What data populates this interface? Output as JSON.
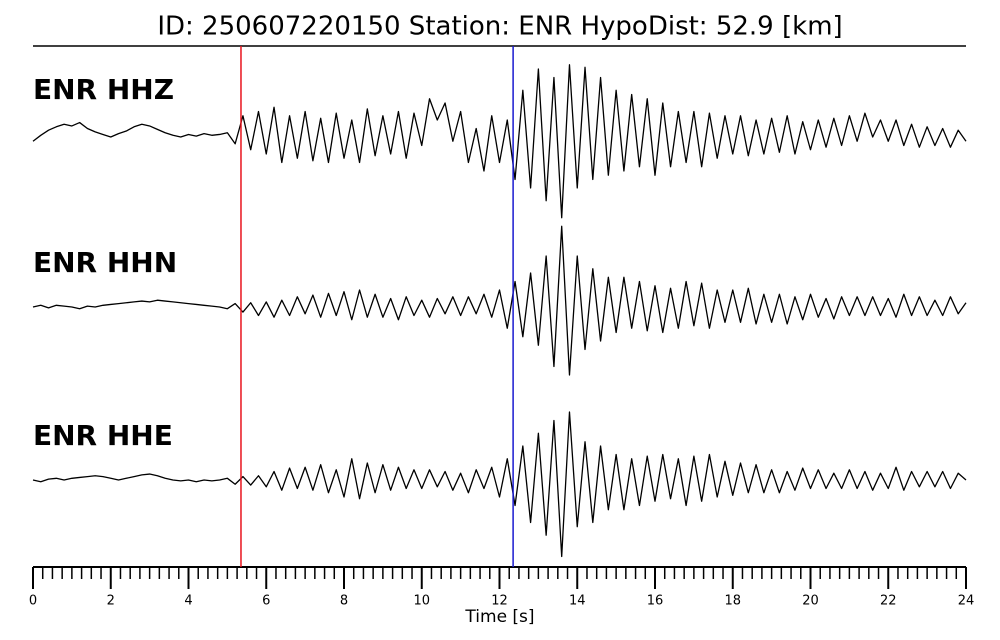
{
  "chart_data": {
    "type": "seismogram",
    "title": "ID: 250607220150   Station: ENR   HypoDist:    52.9 [km]",
    "xlabel": "Time [s]",
    "xlim": [
      0,
      24
    ],
    "xticks": [
      0,
      2,
      4,
      6,
      8,
      10,
      12,
      14,
      16,
      18,
      20,
      22,
      24
    ],
    "xminorticks": [
      0,
      0.25,
      0.5,
      0.75,
      1,
      1.25,
      1.5,
      1.75,
      2,
      2.25,
      2.5,
      2.75,
      3,
      3.25,
      3.5,
      3.75,
      4,
      4.25,
      4.5,
      4.75,
      5,
      5.25,
      5.5,
      5.75,
      6,
      6.25,
      6.5,
      6.75,
      7,
      7.25,
      7.5,
      7.75,
      8,
      8.25,
      8.5,
      8.75,
      9,
      9.25,
      9.5,
      9.75,
      10,
      10.25,
      10.5,
      10.75,
      11,
      11.25,
      11.5,
      11.75,
      12,
      12.25,
      12.5,
      12.75,
      13,
      13.25,
      13.5,
      13.75,
      14,
      14.25,
      14.5,
      14.75,
      15,
      15.25,
      15.5,
      15.75,
      16,
      16.25,
      16.5,
      16.75,
      17,
      17.25,
      17.5,
      17.75,
      18,
      18.25,
      18.5,
      18.75,
      19,
      19.25,
      19.5,
      19.75,
      20,
      20.25,
      20.5,
      20.75,
      21,
      21.25,
      21.5,
      21.75,
      22,
      22.25,
      22.5,
      22.75,
      23,
      23.25,
      23.5,
      23.75,
      24
    ],
    "ylim": [
      -1,
      1
    ],
    "markers": [
      {
        "x": 5.35,
        "color": "#e8141e"
      },
      {
        "x": 12.35,
        "color": "#1a1ad0"
      }
    ],
    "label_color": "#4b9a06",
    "x": [
      0,
      0.2,
      0.4,
      0.6,
      0.8,
      1,
      1.2,
      1.4,
      1.6,
      1.8,
      2,
      2.2,
      2.4,
      2.6,
      2.8,
      3,
      3.2,
      3.4,
      3.6,
      3.8,
      4,
      4.2,
      4.4,
      4.6,
      4.8,
      5,
      5.2,
      5.4,
      5.6,
      5.8,
      6,
      6.2,
      6.4,
      6.6,
      6.8,
      7,
      7.2,
      7.4,
      7.6,
      7.8,
      8,
      8.2,
      8.4,
      8.6,
      8.8,
      9,
      9.2,
      9.4,
      9.6,
      9.8,
      10,
      10.2,
      10.4,
      10.6,
      10.8,
      11,
      11.2,
      11.4,
      11.6,
      11.8,
      12,
      12.2,
      12.4,
      12.6,
      12.8,
      13,
      13.2,
      13.4,
      13.6,
      13.8,
      14,
      14.2,
      14.4,
      14.6,
      14.8,
      15,
      15.2,
      15.4,
      15.6,
      15.8,
      16,
      16.2,
      16.4,
      16.6,
      16.8,
      17,
      17.2,
      17.4,
      17.6,
      17.8,
      18,
      18.2,
      18.4,
      18.6,
      18.8,
      19,
      19.2,
      19.4,
      19.6,
      19.8,
      20,
      20.2,
      20.4,
      20.6,
      20.8,
      21,
      21.2,
      21.4,
      21.6,
      21.8,
      22,
      22.2,
      22.4,
      22.6,
      22.8,
      23,
      23.2,
      23.4,
      23.6,
      23.8,
      24
    ],
    "series": [
      {
        "name": "ENR HHZ",
        "color": "#000000",
        "values": [
          -0.05,
          0.02,
          0.08,
          0.12,
          0.15,
          0.13,
          0.17,
          0.1,
          0.06,
          0.03,
          0.0,
          0.04,
          0.07,
          0.12,
          0.15,
          0.13,
          0.09,
          0.05,
          0.02,
          0.0,
          0.03,
          0.01,
          0.04,
          0.02,
          0.03,
          0.05,
          -0.08,
          0.25,
          -0.15,
          0.3,
          -0.2,
          0.35,
          -0.3,
          0.25,
          -0.25,
          0.3,
          -0.28,
          0.22,
          -0.3,
          0.28,
          -0.25,
          0.2,
          -0.3,
          0.33,
          -0.22,
          0.25,
          -0.2,
          0.3,
          -0.25,
          0.28,
          -0.1,
          0.45,
          0.2,
          0.4,
          -0.05,
          0.3,
          -0.3,
          0.1,
          -0.4,
          0.25,
          -0.3,
          0.2,
          -0.5,
          0.55,
          -0.6,
          0.8,
          -0.75,
          0.7,
          -0.95,
          0.85,
          -0.6,
          0.82,
          -0.5,
          0.7,
          -0.45,
          0.55,
          -0.4,
          0.5,
          -0.35,
          0.45,
          -0.45,
          0.4,
          -0.35,
          0.3,
          -0.3,
          0.3,
          -0.35,
          0.28,
          -0.25,
          0.25,
          -0.2,
          0.25,
          -0.22,
          0.2,
          -0.2,
          0.22,
          -0.18,
          0.25,
          -0.2,
          0.18,
          -0.15,
          0.2,
          -0.12,
          0.22,
          -0.1,
          0.25,
          -0.05,
          0.28,
          0.0,
          0.2,
          -0.05,
          0.2,
          -0.1,
          0.15,
          -0.12,
          0.12,
          -0.1,
          0.1,
          -0.12,
          0.08,
          -0.05
        ]
      },
      {
        "name": "ENR HHN",
        "color": "#000000",
        "values": [
          0,
          0.02,
          -0.01,
          0.02,
          0.01,
          0.0,
          -0.02,
          0.01,
          0.0,
          0.02,
          0.03,
          0.04,
          0.05,
          0.06,
          0.07,
          0.06,
          0.08,
          0.07,
          0.06,
          0.05,
          0.04,
          0.03,
          0.02,
          0.01,
          0.0,
          -0.02,
          0.04,
          -0.06,
          0.05,
          -0.1,
          0.06,
          -0.12,
          0.08,
          -0.1,
          0.12,
          -0.08,
          0.14,
          -0.12,
          0.16,
          -0.1,
          0.18,
          -0.15,
          0.2,
          -0.12,
          0.15,
          -0.12,
          0.1,
          -0.15,
          0.12,
          -0.1,
          0.08,
          -0.12,
          0.1,
          -0.08,
          0.12,
          -0.1,
          0.12,
          -0.08,
          0.15,
          -0.12,
          0.2,
          -0.25,
          0.3,
          -0.35,
          0.4,
          -0.45,
          0.6,
          -0.7,
          0.95,
          -0.8,
          0.6,
          -0.5,
          0.45,
          -0.4,
          0.35,
          -0.3,
          0.35,
          -0.25,
          0.3,
          -0.28,
          0.25,
          -0.3,
          0.22,
          -0.25,
          0.3,
          -0.22,
          0.28,
          -0.25,
          0.2,
          -0.18,
          0.2,
          -0.18,
          0.22,
          -0.2,
          0.15,
          -0.18,
          0.15,
          -0.2,
          0.12,
          -0.15,
          0.15,
          -0.12,
          0.1,
          -0.14,
          0.12,
          -0.1,
          0.12,
          -0.1,
          0.12,
          -0.1,
          0.1,
          -0.12,
          0.15,
          -0.1,
          0.12,
          -0.1,
          0.08,
          -0.1,
          0.12,
          -0.08,
          0.05
        ]
      },
      {
        "name": "ENR HHE",
        "color": "#000000",
        "values": [
          0,
          -0.02,
          0.01,
          0.02,
          0.0,
          0.02,
          0.03,
          0.04,
          0.05,
          0.04,
          0.02,
          0.0,
          0.02,
          0.04,
          0.06,
          0.07,
          0.05,
          0.02,
          0.0,
          -0.01,
          0.0,
          -0.02,
          0.0,
          -0.01,
          0.0,
          0.02,
          -0.05,
          0.04,
          -0.06,
          0.05,
          -0.08,
          0.1,
          -0.12,
          0.14,
          -0.1,
          0.15,
          -0.12,
          0.18,
          -0.15,
          0.12,
          -0.2,
          0.25,
          -0.22,
          0.2,
          -0.15,
          0.18,
          -0.12,
          0.15,
          -0.1,
          0.12,
          -0.1,
          0.12,
          -0.08,
          0.1,
          -0.12,
          0.08,
          -0.15,
          0.12,
          -0.1,
          0.15,
          -0.2,
          0.25,
          -0.3,
          0.4,
          -0.5,
          0.55,
          -0.65,
          0.7,
          -0.9,
          0.8,
          -0.55,
          0.45,
          -0.5,
          0.4,
          -0.35,
          0.3,
          -0.35,
          0.25,
          -0.3,
          0.28,
          -0.25,
          0.3,
          -0.22,
          0.25,
          -0.3,
          0.28,
          -0.25,
          0.3,
          -0.2,
          0.22,
          -0.18,
          0.2,
          -0.15,
          0.18,
          -0.15,
          0.12,
          -0.15,
          0.1,
          -0.12,
          0.14,
          -0.1,
          0.12,
          -0.1,
          0.08,
          -0.1,
          0.12,
          -0.1,
          0.1,
          -0.12,
          0.08,
          -0.1,
          0.15,
          -0.12,
          0.1,
          -0.08,
          0.1,
          -0.08,
          0.1,
          -0.1,
          0.08,
          0.0
        ]
      }
    ]
  }
}
